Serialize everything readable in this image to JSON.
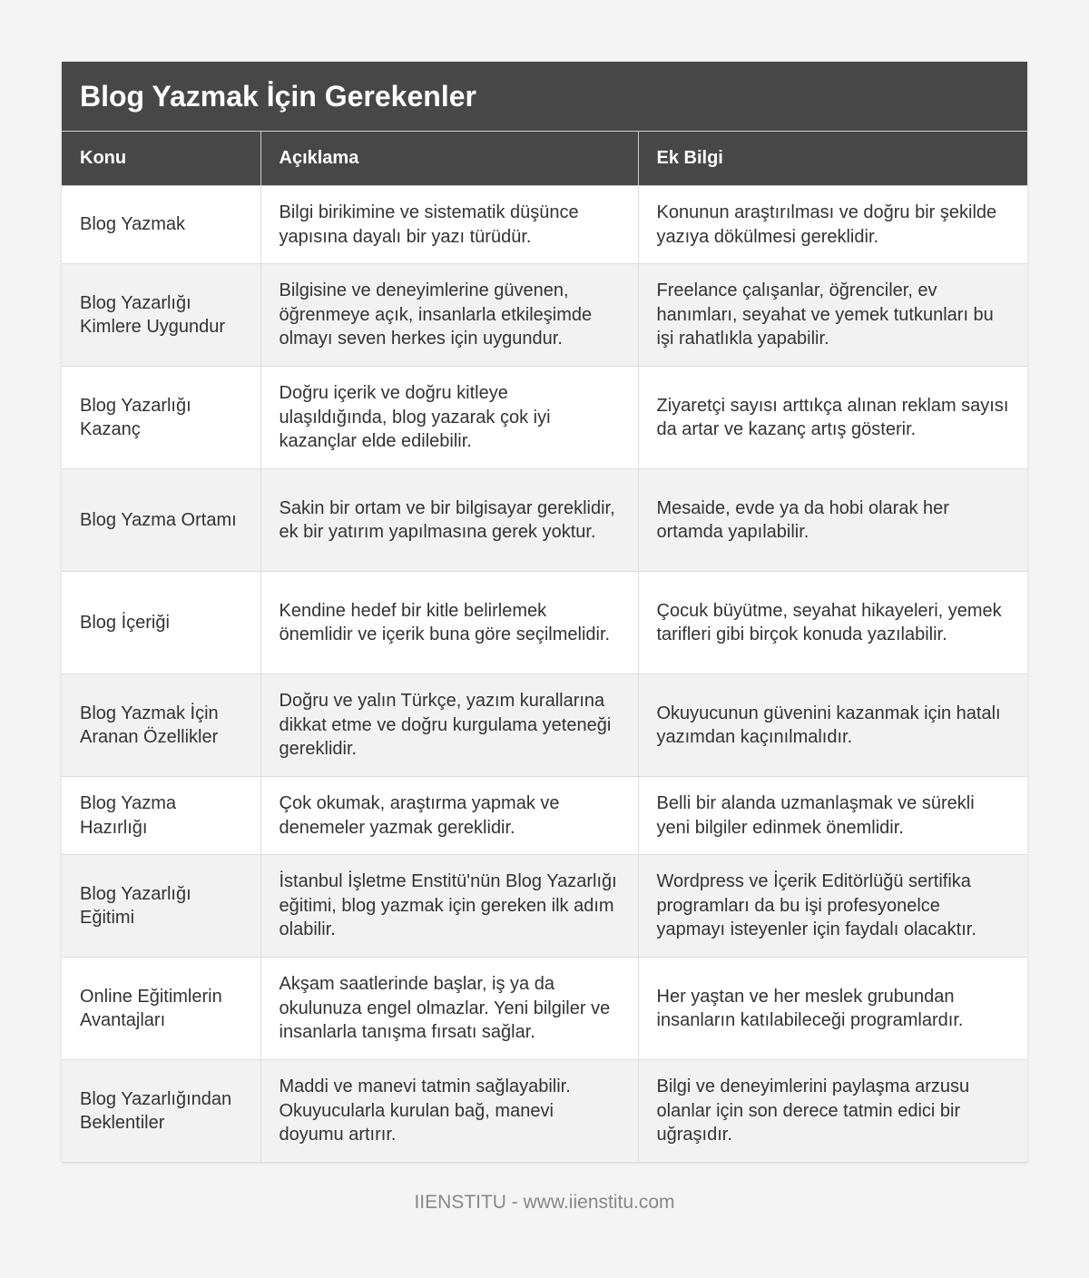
{
  "title": "Blog Yazmak İçin Gerekenler",
  "columns": [
    "Konu",
    "Açıklama",
    "Ek Bilgi"
  ],
  "rows": [
    [
      "Blog Yazmak",
      "Bilgi birikimine ve sistematik düşünce yapısına dayalı bir yazı türüdür.",
      "Konunun araştırılması ve doğru bir şekilde yazıya dökülmesi gereklidir."
    ],
    [
      "Blog Yazarlığı Kimlere Uygundur",
      "Bilgisine ve deneyimlerine güvenen, öğrenmeye açık, insanlarla etkileşimde olmayı seven herkes için uygundur.",
      "Freelance çalışanlar, öğrenciler, ev hanımları, seyahat ve yemek tutkunları bu işi rahatlıkla yapabilir."
    ],
    [
      "Blog Yazarlığı Kazanç",
      "Doğru içerik ve doğru kitleye ulaşıldığında, blog yazarak çok iyi kazançlar elde edilebilir.",
      "Ziyaretçi sayısı arttıkça alınan reklam sayısı da artar ve kazanç artış gösterir."
    ],
    [
      "Blog Yazma Ortamı",
      "Sakin bir ortam ve bir bilgisayar gereklidir, ek bir yatırım yapılmasına gerek yoktur.",
      "Mesaide, evde ya da hobi olarak her ortamda yapılabilir."
    ],
    [
      "Blog İçeriği",
      "Kendine hedef bir kitle belirlemek önemlidir ve içerik buna göre seçilmelidir.",
      "Çocuk büyütme, seyahat hikayeleri, yemek tarifleri gibi birçok konuda yazılabilir."
    ],
    [
      "Blog Yazmak İçin Aranan Özellikler",
      "Doğru ve yalın Türkçe, yazım kurallarına dikkat etme ve doğru kurgulama yeteneği gereklidir.",
      "Okuyucunun güvenini kazanmak için hatalı yazımdan kaçınılmalıdır."
    ],
    [
      "Blog Yazma Hazırlığı",
      "Çok okumak, araştırma yapmak ve denemeler yazmak gereklidir.",
      "Belli bir alanda uzmanlaşmak ve sürekli yeni bilgiler edinmek önemlidir."
    ],
    [
      "Blog Yazarlığı Eğitimi",
      "İstanbul İşletme Enstitü'nün Blog Yazarlığı eğitimi, blog yazmak için gereken ilk adım olabilir.",
      "Wordpress ve İçerik Editörlüğü sertifika programları da bu işi profesyonelce yapmayı isteyenler için faydalı olacaktır."
    ],
    [
      "Online Eğitimlerin Avantajları",
      "Akşam saatlerinde başlar, iş ya da okulunuza engel olmazlar. Yeni bilgiler ve insanlarla tanışma fırsatı sağlar.",
      "Her yaştan ve her meslek grubundan insanların katılabileceği programlardır."
    ],
    [
      "Blog Yazarlığından Beklentiler",
      "Maddi ve manevi tatmin sağlayabilir. Okuyucularla kurulan bağ, manevi doyumu artırır.",
      "Bilgi ve deneyimlerini paylaşma arzusu olanlar için son derece tatmin edici bir uğraşıdır."
    ]
  ],
  "footer": "IIENSTITU - www.iienstitu.com"
}
